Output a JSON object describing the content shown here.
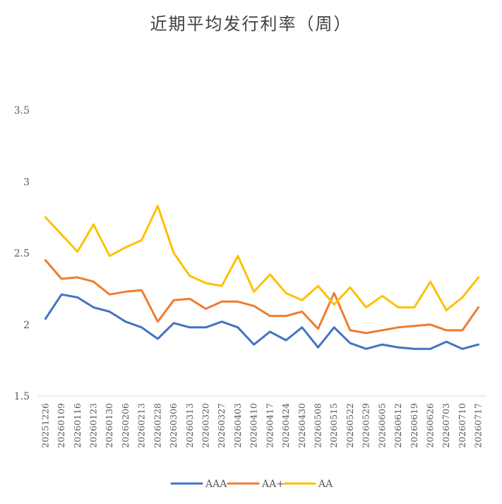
{
  "chart_data": {
    "type": "line",
    "title": "近期平均发行利率（周）",
    "xlabel": "",
    "ylabel": "",
    "ylim": [
      1.5,
      3.5
    ],
    "yticks": [
      "1.5",
      "2",
      "2.5",
      "3",
      "3.5"
    ],
    "grid": false,
    "legend": "bottom",
    "x": [
      "20251226",
      "20260109",
      "20260116",
      "20260123",
      "20260130",
      "20260206",
      "20260213",
      "20260228",
      "20260306",
      "20260313",
      "20260320",
      "20260327",
      "20260403",
      "20260410",
      "20260417",
      "20260424",
      "20260430",
      "20260508",
      "20260515",
      "20260522",
      "20260529",
      "20260605",
      "20260612",
      "20260619",
      "20260626",
      "20260703",
      "20260710",
      "20260717"
    ],
    "series": [
      {
        "name": "AAA",
        "color": "#4472C4",
        "values": [
          2.04,
          2.21,
          2.19,
          2.12,
          2.09,
          2.02,
          1.98,
          1.9,
          2.01,
          1.98,
          1.98,
          2.02,
          1.98,
          1.86,
          1.95,
          1.89,
          1.98,
          1.84,
          1.98,
          1.87,
          1.83,
          1.86,
          1.84,
          1.83,
          1.83,
          1.88,
          1.83,
          1.86
        ]
      },
      {
        "name": "AA+",
        "color": "#ED7D31",
        "values": [
          2.45,
          2.32,
          2.33,
          2.3,
          2.21,
          2.23,
          2.24,
          2.02,
          2.17,
          2.18,
          2.11,
          2.16,
          2.16,
          2.13,
          2.06,
          2.06,
          2.09,
          1.97,
          2.22,
          1.96,
          1.94,
          1.96,
          1.98,
          1.99,
          2.0,
          1.96,
          1.96,
          2.12
        ]
      },
      {
        "name": "AA",
        "color": "#FFC000",
        "values": [
          2.75,
          2.63,
          2.51,
          2.7,
          2.48,
          2.54,
          2.59,
          2.83,
          2.5,
          2.34,
          2.29,
          2.27,
          2.48,
          2.23,
          2.35,
          2.22,
          2.17,
          2.27,
          2.14,
          2.26,
          2.12,
          2.2,
          2.12,
          2.12,
          2.3,
          2.1,
          2.19,
          2.33
        ]
      }
    ]
  }
}
